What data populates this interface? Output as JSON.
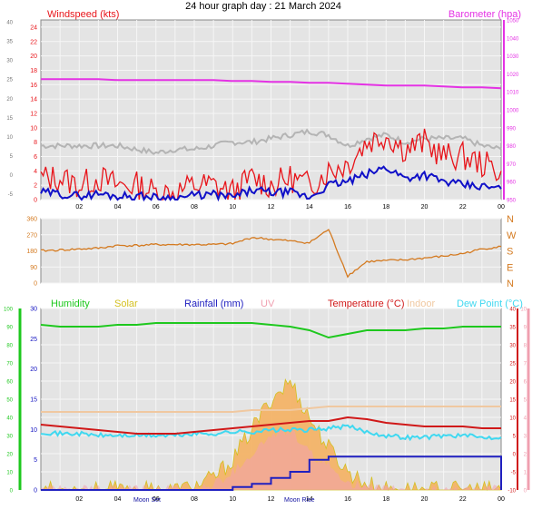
{
  "title": "24 hour graph day : 21 March 2024",
  "colors": {
    "wind": "#e8141a",
    "gust": "#e8141a",
    "avg": "#1010c8",
    "temp_dewpt_gray": "#b4b4b4",
    "barometer": "#e432e4",
    "direction": "#d47a20",
    "humidity": "#1ec81e",
    "solar": "#d4c020",
    "solar_fill": "#f4b060",
    "rainfall": "#2020c0",
    "uv": "#f0a0b0",
    "temperature": "#d01818",
    "indoor": "#f0c8a0",
    "dewpoint": "#40d8f0",
    "plot_bg": "#e4e4e4"
  },
  "x_ticks": [
    "02",
    "04",
    "06",
    "08",
    "10",
    "12",
    "14",
    "16",
    "18",
    "20",
    "22",
    "00"
  ],
  "chart_data": [
    {
      "type": "line",
      "id": "wind",
      "left_label": "Windspeed (kts)",
      "right_label": "Barometer (hpa)",
      "left_ticks_outer": [
        "40",
        "35",
        "30",
        "25",
        "20",
        "15",
        "10",
        "5",
        "0",
        "-5"
      ],
      "left_ticks": [
        "24",
        "22",
        "20",
        "18",
        "16",
        "14",
        "12",
        "10",
        "8",
        "6",
        "4",
        "2",
        "0"
      ],
      "right_ticks": [
        "1050",
        "1040",
        "1030",
        "1020",
        "1010",
        "1000",
        "990",
        "980",
        "970",
        "960",
        "950"
      ],
      "ylim": [
        0,
        25
      ],
      "right_ylim": [
        950,
        1050
      ],
      "x": [
        0,
        1,
        2,
        3,
        4,
        5,
        6,
        7,
        8,
        9,
        10,
        11,
        12,
        13,
        14,
        15,
        16,
        17,
        18,
        19,
        20,
        21,
        22,
        23,
        24
      ],
      "series": [
        {
          "role": "barometer",
          "axis": "right",
          "values": [
            1017,
            1017,
            1017,
            1017,
            1016.5,
            1016.5,
            1016.5,
            1016.5,
            1016.5,
            1016.5,
            1016,
            1016,
            1015.5,
            1015.5,
            1015,
            1015,
            1014.5,
            1014,
            1013.5,
            1013.5,
            1013.5,
            1013,
            1012.5,
            1012.5,
            1012
          ]
        },
        {
          "role": "gray-line",
          "axis": "left",
          "values": [
            7.5,
            7.5,
            7.5,
            7.5,
            7.5,
            7,
            6.5,
            7,
            7,
            7.5,
            8,
            8,
            8.5,
            9,
            9.5,
            9,
            7.5,
            8.5,
            9,
            8,
            8.5,
            8.5,
            8.5,
            7.5,
            7
          ]
        },
        {
          "role": "gust",
          "axis": "left",
          "values": [
            3,
            3,
            2,
            3,
            2,
            2,
            1,
            1,
            2,
            2,
            1,
            3,
            2,
            3,
            2,
            4,
            5,
            8,
            9,
            7,
            8,
            6,
            6,
            5,
            4
          ]
        },
        {
          "role": "average",
          "axis": "left",
          "values": [
            1,
            0.8,
            0.5,
            0.8,
            0.5,
            0.5,
            0.3,
            0.2,
            0.6,
            0.7,
            0.3,
            1.3,
            1,
            1,
            0.3,
            2,
            2.5,
            3.5,
            4.5,
            3,
            3.5,
            2.5,
            2,
            1.8,
            1.5
          ]
        }
      ]
    },
    {
      "type": "line",
      "id": "direction",
      "left_ticks": [
        "360",
        "270",
        "180",
        "90",
        "0"
      ],
      "right_ticks": [
        "N",
        "W",
        "S",
        "E",
        "N"
      ],
      "ylim": [
        0,
        360
      ],
      "x": [
        0,
        1,
        2,
        3,
        4,
        5,
        6,
        7,
        8,
        9,
        10,
        11,
        12,
        13,
        14,
        15,
        16,
        17,
        18,
        19,
        20,
        21,
        22,
        23,
        24
      ],
      "series": [
        {
          "role": "wind-direction",
          "values": [
            180,
            185,
            190,
            195,
            210,
            210,
            215,
            215,
            215,
            215,
            220,
            255,
            245,
            235,
            225,
            300,
            40,
            120,
            125,
            130,
            140,
            150,
            165,
            190,
            205
          ]
        }
      ]
    },
    {
      "type": "area",
      "id": "environment",
      "legend": [
        "Humidity",
        "Solar",
        "Rainfall (mm)",
        "UV",
        "Temperature (°C)",
        "Indoor",
        "Dew Point (°C)"
      ],
      "humidity_ticks": [
        "100",
        "90",
        "80",
        "70",
        "60",
        "50",
        "40",
        "30",
        "20",
        "10",
        "0"
      ],
      "solar_ticks": [
        "30",
        "25",
        "20",
        "15",
        "10",
        "5",
        "0"
      ],
      "temp_ticks": [
        "40",
        "35",
        "30",
        "25",
        "20",
        "15",
        "10",
        "5",
        "0",
        "-5",
        "-10"
      ],
      "uv_ticks": [
        "10",
        "9",
        "8",
        "7",
        "6",
        "5",
        "4",
        "3",
        "2",
        "1",
        "0"
      ],
      "annotations": [
        "Moon Set",
        "Moon Rise"
      ],
      "ylim": [
        -10,
        40
      ],
      "x": [
        0,
        1,
        2,
        3,
        4,
        5,
        6,
        7,
        8,
        9,
        10,
        11,
        12,
        13,
        14,
        15,
        16,
        17,
        18,
        19,
        20,
        21,
        22,
        23,
        24
      ],
      "series": [
        {
          "role": "humidity",
          "scale": [
            0,
            100
          ],
          "values": [
            91,
            90,
            90,
            90,
            91,
            91,
            92,
            92,
            92,
            92,
            92,
            92,
            91,
            90,
            88,
            84,
            86,
            88,
            88,
            88,
            89,
            89,
            90,
            90,
            90
          ]
        },
        {
          "role": "indoor",
          "scale": [
            -10,
            40
          ],
          "values": [
            11.5,
            11.5,
            11.5,
            11.5,
            11.5,
            11.5,
            11.5,
            11.5,
            11.5,
            11.5,
            11.5,
            12,
            12,
            12,
            12.5,
            13,
            13,
            13,
            13,
            13,
            13,
            13,
            13,
            13,
            13
          ]
        },
        {
          "role": "temperature",
          "scale": [
            -10,
            40
          ],
          "values": [
            8,
            7.5,
            7,
            6.5,
            6,
            5.5,
            5.5,
            5.5,
            6,
            6.5,
            7,
            7.5,
            8,
            8.5,
            9,
            9,
            10,
            9.5,
            8.5,
            8,
            7.5,
            7.5,
            7.5,
            7,
            7
          ]
        },
        {
          "role": "dewpoint",
          "scale": [
            -10,
            40
          ],
          "values": [
            6,
            5.5,
            5.5,
            5,
            5,
            5,
            5,
            5,
            5.5,
            5.5,
            6,
            6,
            6.5,
            6.5,
            6.5,
            7,
            7.5,
            6,
            5,
            4.5,
            4.5,
            5,
            5,
            4.5,
            4.5
          ]
        },
        {
          "role": "solar",
          "scale": [
            0,
            30
          ],
          "values": [
            0,
            0,
            0,
            0,
            0,
            0,
            0,
            0,
            0.5,
            2,
            5,
            10,
            15,
            18,
            12,
            7,
            3,
            1,
            0,
            0,
            0,
            0,
            0,
            0,
            0
          ]
        },
        {
          "role": "uv",
          "scale": [
            0,
            10
          ],
          "values": [
            0,
            0,
            0,
            0,
            0,
            0,
            0,
            0,
            0,
            0.3,
            1,
            2,
            3,
            3.3,
            2,
            1.3,
            0.5,
            0,
            0,
            0,
            0,
            0,
            0,
            0,
            0
          ]
        },
        {
          "role": "rainfall",
          "scale": [
            0,
            30
          ],
          "values": [
            0,
            0,
            0,
            0,
            0,
            0,
            0,
            0,
            0,
            0,
            0.5,
            1,
            2,
            3,
            5,
            5.5,
            5.5,
            5.5,
            5.5,
            5.5,
            5.5,
            5.5,
            5.5,
            5.5,
            0
          ]
        }
      ]
    }
  ]
}
